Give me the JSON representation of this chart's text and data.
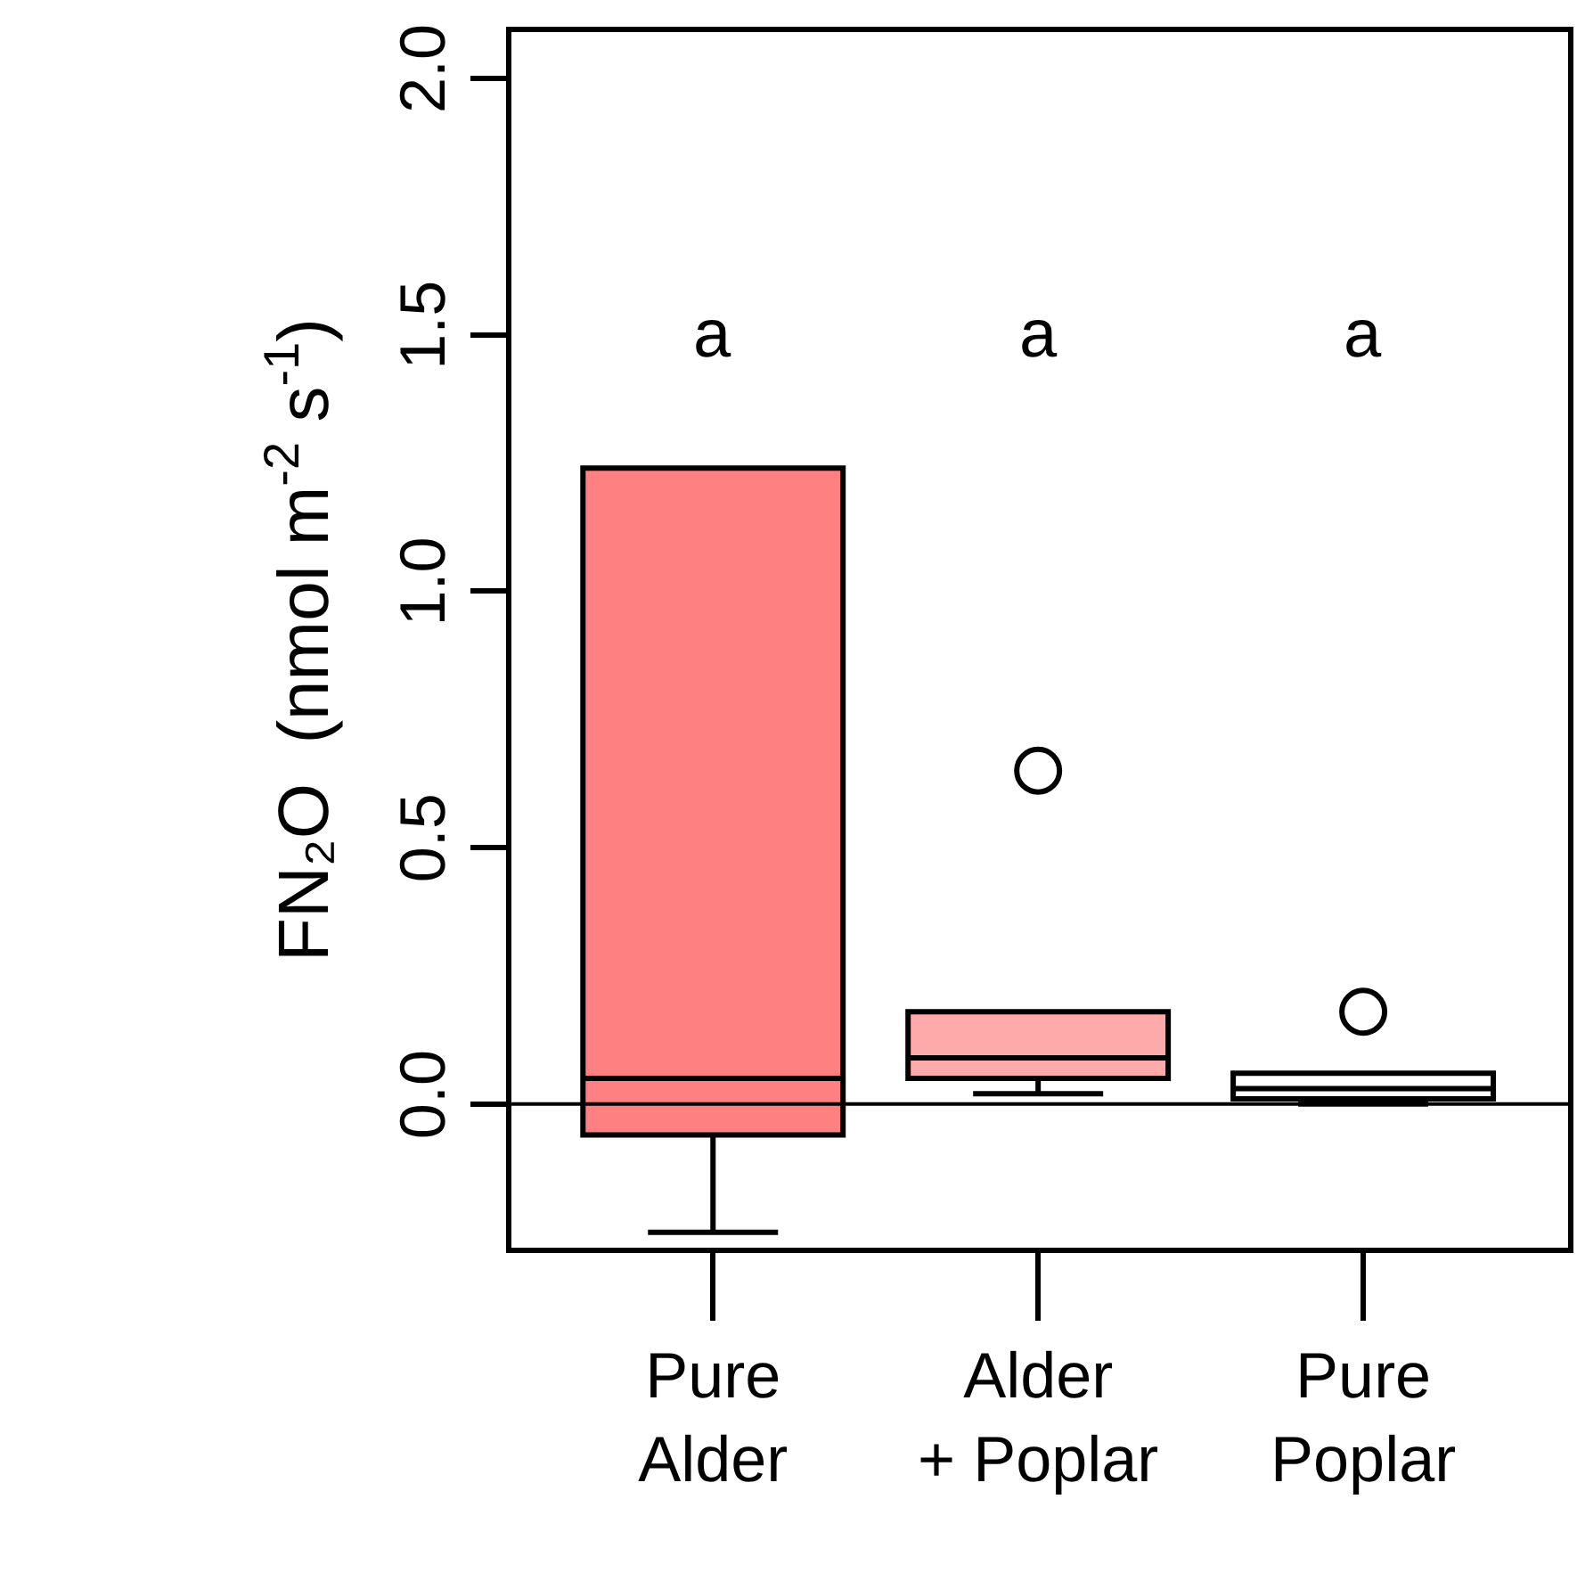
{
  "chart_data": {
    "type": "box",
    "ylabel": "FN₂O  (nmol m$^{-2}$ s$^{-1}$)",
    "categories": [
      "Pure\nAlder",
      "Alder\n+ Poplar",
      "Pure\nPoplar"
    ],
    "boxes": [
      {
        "low": -0.25,
        "q1": -0.06,
        "median": 0.05,
        "q3": 1.24,
        "high": 1.24
      },
      {
        "low": 0.02,
        "q1": 0.05,
        "median": 0.09,
        "q3": 0.18,
        "high": 0.18,
        "outliers": [
          0.65
        ]
      },
      {
        "low": 0.0,
        "q1": 0.01,
        "median": 0.03,
        "q3": 0.06,
        "high": 0.06,
        "outliers": [
          0.18
        ]
      }
    ],
    "colors": [
      "#ff8080",
      "#ffaaaa",
      "#ffffff"
    ],
    "ylim": [
      -0.28,
      2.09
    ],
    "yticks": [
      {
        "value": 0,
        "label": "0.0"
      },
      {
        "value": 0.5,
        "label": "0.5"
      },
      {
        "value": 1,
        "label": "1.0"
      },
      {
        "value": 1.5,
        "label": "1.5"
      },
      {
        "value": 2,
        "label": "2.0"
      }
    ],
    "ref_lines": [
      {
        "axis": "y",
        "value": 0,
        "color": "#000000"
      }
    ],
    "annotations": [
      "a",
      "a",
      "a"
    ],
    "grid": false
  }
}
